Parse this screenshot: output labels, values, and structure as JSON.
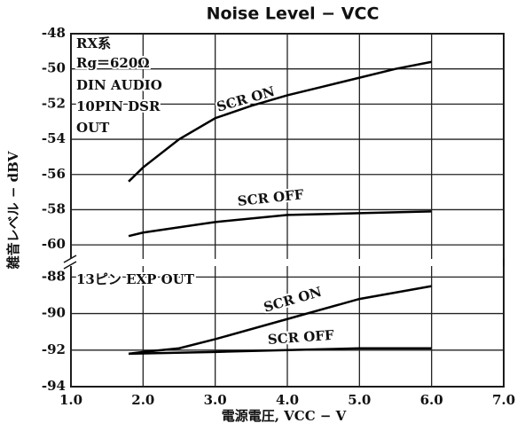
{
  "chart_data": [
    {
      "type": "line",
      "title": "Noise Level − VCC",
      "y_label": "雑音レベル − dBV",
      "annotations": [
        "RX系",
        "Rg＝620Ω",
        "DIN AUDIO",
        "10PIN DSR",
        "OUT"
      ],
      "xlim": [
        1,
        7
      ],
      "ylim": [
        -60.8,
        -48
      ],
      "yticks": [
        -48,
        -50,
        -52,
        -54,
        -56,
        -58,
        -60
      ],
      "grid": true,
      "series": [
        {
          "name": "SCR ON",
          "color": "#000000",
          "x": [
            1.8,
            2.0,
            2.5,
            3.0,
            3.5,
            4.0,
            4.5,
            5.0,
            5.5,
            6.0
          ],
          "values": [
            -56.4,
            -55.6,
            -54.0,
            -52.8,
            -52.1,
            -51.5,
            -51.0,
            -50.5,
            -50.0,
            -49.6
          ]
        },
        {
          "name": "SCR OFF",
          "color": "#000000",
          "x": [
            1.8,
            2.0,
            3.0,
            4.0,
            5.0,
            6.0
          ],
          "values": [
            -59.5,
            -59.3,
            -58.7,
            -58.3,
            -58.2,
            -58.1
          ]
        }
      ]
    },
    {
      "type": "line",
      "x_label": "電源電圧, VCC − V",
      "annotations": [
        "13ピン EXP OUT"
      ],
      "xlim": [
        1,
        7
      ],
      "ylim": [
        -94,
        -87.4
      ],
      "xticks": [
        {
          "value": 1,
          "label": "1.0"
        },
        {
          "value": 2,
          "label": "2.0"
        },
        {
          "value": 3,
          "label": "3.0"
        },
        {
          "value": 4,
          "label": "4.0"
        },
        {
          "value": 5,
          "label": "5.0"
        },
        {
          "value": 6,
          "label": "6.0"
        },
        {
          "value": 7,
          "label": "7.0"
        }
      ],
      "yticks": [
        -88,
        -90,
        -92,
        -94
      ],
      "grid": true,
      "series": [
        {
          "name": "SCR ON",
          "color": "#000000",
          "x": [
            1.8,
            2.0,
            2.5,
            3.0,
            4.0,
            5.0,
            6.0
          ],
          "values": [
            -92.2,
            -92.1,
            -91.9,
            -91.4,
            -90.3,
            -89.2,
            -88.5
          ]
        },
        {
          "name": "SCR OFF",
          "color": "#000000",
          "x": [
            1.8,
            3.0,
            4.0,
            5.0,
            6.0
          ],
          "values": [
            -92.2,
            -92.1,
            -92.0,
            -91.9,
            -91.9
          ]
        }
      ]
    }
  ]
}
